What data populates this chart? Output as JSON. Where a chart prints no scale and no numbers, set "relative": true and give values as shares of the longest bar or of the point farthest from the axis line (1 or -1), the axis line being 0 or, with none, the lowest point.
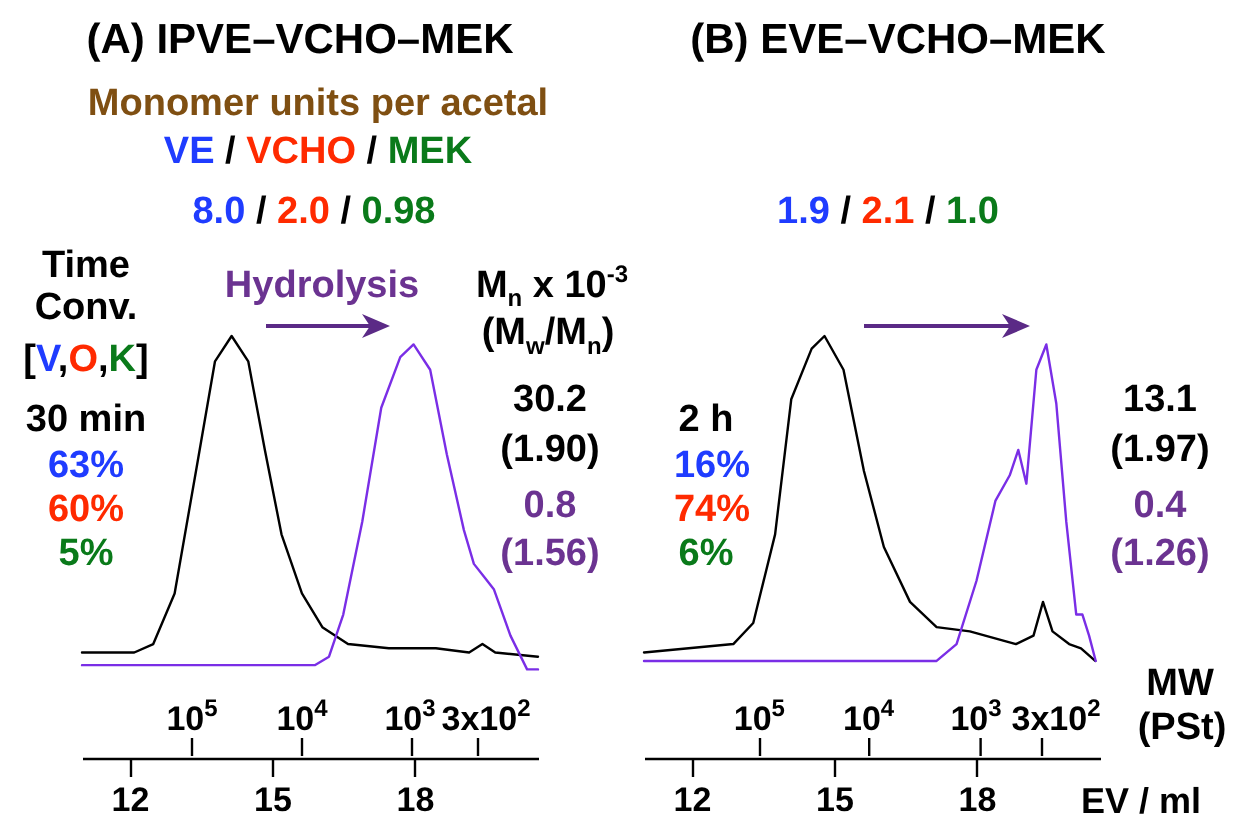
{
  "chart_data": [
    {
      "type": "line",
      "title": "(A) IPVE–VCHO–MEK",
      "relative": true,
      "xlim": [
        11,
        20.6
      ],
      "xticks": [
        12,
        15,
        18
      ],
      "series": [
        {
          "color": "#000000",
          "x": [
            11.0,
            12.1,
            12.5,
            12.95,
            13.4,
            13.8,
            14.15,
            14.5,
            14.85,
            15.2,
            15.63,
            16.06,
            16.6,
            17.46,
            18.45,
            19.15,
            19.43,
            19.7,
            20.6
          ],
          "values": [
            0.25,
            0.25,
            0.27,
            0.39,
            0.68,
            0.94,
            1.0,
            0.94,
            0.73,
            0.53,
            0.39,
            0.31,
            0.27,
            0.26,
            0.26,
            0.25,
            0.27,
            0.25,
            0.24
          ]
        },
        {
          "color": "#7a2ee6",
          "x": [
            11.0,
            15.9,
            16.2,
            16.5,
            16.9,
            17.3,
            17.7,
            17.98,
            18.33,
            18.68,
            19.04,
            19.25,
            19.46,
            19.67,
            20.02,
            20.37,
            20.6
          ],
          "values": [
            0.22,
            0.22,
            0.24,
            0.34,
            0.56,
            0.83,
            0.95,
            0.98,
            0.92,
            0.72,
            0.54,
            0.46,
            0.43,
            0.4,
            0.29,
            0.21,
            0.21
          ]
        }
      ],
      "annotations": [
        "Monomer units per acetal",
        "VE / VCHO / MEK",
        "8.0 / 2.0 / 0.98",
        "Time",
        "Conv.",
        "[V,O,K]",
        "30 min",
        "63%",
        "60%",
        "5%",
        "Hydrolysis",
        "M$_{n}$ x 10$^{-3}$",
        "(M$_{w}$/M$_{n}$)",
        "30.2",
        "(1.90)",
        "0.8",
        "(1.56)",
        "10$^{5}$",
        "10$^{4}$",
        "10$^{3}$",
        "3x10$^{2}$"
      ]
    },
    {
      "type": "line",
      "title": "(B) EVE–VCHO–MEK",
      "relative": true,
      "xlabel": "EV / ml",
      "xlim": [
        11,
        20.6
      ],
      "xticks": [
        12,
        15,
        18
      ],
      "series": [
        {
          "color": "#000000",
          "x": [
            11.0,
            12.88,
            13.3,
            13.76,
            14.1,
            14.53,
            14.8,
            15.2,
            15.63,
            16.05,
            16.6,
            17.16,
            17.86,
            18.83,
            19.2,
            19.4,
            19.6,
            19.95,
            20.2,
            20.5
          ],
          "values": [
            0.25,
            0.27,
            0.32,
            0.53,
            0.85,
            0.97,
            1.0,
            0.92,
            0.68,
            0.5,
            0.37,
            0.31,
            0.3,
            0.27,
            0.29,
            0.37,
            0.3,
            0.27,
            0.26,
            0.23
          ]
        },
        {
          "color": "#7a2ee6",
          "x": [
            11.0,
            17.16,
            17.58,
            18.0,
            18.4,
            18.7,
            18.88,
            19.05,
            19.26,
            19.47,
            19.68,
            19.89,
            20.1,
            20.23,
            20.37,
            20.51
          ],
          "values": [
            0.23,
            0.23,
            0.27,
            0.42,
            0.61,
            0.67,
            0.73,
            0.65,
            0.92,
            0.98,
            0.84,
            0.56,
            0.34,
            0.34,
            0.29,
            0.23
          ]
        }
      ],
      "annotations": [
        "1.9 / 2.1 / 1.0",
        "2 h",
        "16%",
        "74%",
        "6%",
        "13.1",
        "(1.97)",
        "0.4",
        "(1.26)",
        "10$^{5}$",
        "10$^{4}$",
        "10$^{3}$",
        "3x10$^{2}$",
        "MW",
        "(PSt)"
      ]
    }
  ]
}
